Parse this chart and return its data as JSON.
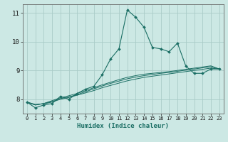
{
  "xlabel": "Humidex (Indice chaleur)",
  "bg_color": "#cce8e4",
  "grid_color": "#aaccc8",
  "line_color": "#1a6e64",
  "xlim": [
    -0.5,
    23.5
  ],
  "ylim": [
    7.5,
    11.3
  ],
  "yticks": [
    8,
    9,
    10,
    11
  ],
  "xticks": [
    0,
    1,
    2,
    3,
    4,
    5,
    6,
    7,
    8,
    9,
    10,
    11,
    12,
    13,
    14,
    15,
    16,
    17,
    18,
    19,
    20,
    21,
    22,
    23
  ],
  "series_main": [
    7.9,
    7.7,
    7.8,
    7.85,
    8.1,
    8.0,
    8.2,
    8.35,
    8.45,
    8.85,
    9.4,
    9.75,
    11.1,
    10.85,
    10.5,
    9.8,
    9.75,
    9.65,
    9.95,
    9.15,
    8.9,
    8.9,
    9.05,
    9.05
  ],
  "series_linear": [
    [
      7.9,
      7.82,
      7.84,
      7.9,
      8.0,
      8.06,
      8.14,
      8.22,
      8.3,
      8.4,
      8.48,
      8.56,
      8.64,
      8.7,
      8.76,
      8.8,
      8.84,
      8.88,
      8.92,
      8.96,
      9.0,
      9.04,
      9.08,
      9.05
    ],
    [
      7.9,
      7.8,
      7.85,
      7.92,
      8.02,
      8.08,
      8.16,
      8.26,
      8.36,
      8.46,
      8.55,
      8.63,
      8.71,
      8.77,
      8.82,
      8.86,
      8.9,
      8.93,
      8.97,
      9.01,
      9.05,
      9.09,
      9.13,
      9.05
    ],
    [
      7.9,
      7.8,
      7.85,
      7.95,
      8.05,
      8.12,
      8.2,
      8.3,
      8.4,
      8.5,
      8.59,
      8.68,
      8.76,
      8.82,
      8.87,
      8.9,
      8.93,
      8.96,
      9.0,
      9.04,
      9.08,
      9.12,
      9.16,
      9.05
    ]
  ]
}
